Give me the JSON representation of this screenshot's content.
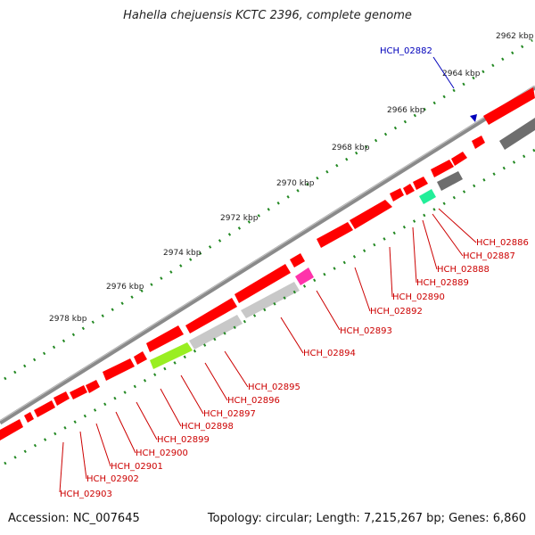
{
  "title": "Hahella chejuensis KCTC 2396, complete genome",
  "accession": "Accession: NC_007645",
  "summary": "Topology: circular; Length: 7,215,267 bp; Genes: 6,860",
  "colors": {
    "backbone": "#8a8a8a",
    "gene_red": "#ff0000",
    "gene_grey": "#c8c8c8",
    "gene_dark": "#6e6e6e",
    "gene_green": "#99ee22",
    "gene_teal": "#22ee99",
    "gene_magenta": "#ff33aa",
    "tick_green": "#228822",
    "label_red": "#cc0000",
    "label_blue": "#0000bb"
  },
  "ruler_labels": [
    "2962 kbp",
    "2964 kbp",
    "2966 kbp",
    "2968 kbp",
    "2970 kbp",
    "2972 kbp",
    "2974 kbp",
    "2976 kbp",
    "2978 kbp"
  ],
  "highlight_gene": "HCH_02882",
  "gene_labels": [
    "HCH_02886",
    "HCH_02887",
    "HCH_02888",
    "HCH_02889",
    "HCH_02890",
    "HCH_02892",
    "HCH_02893",
    "HCH_02894",
    "HCH_02895",
    "HCH_02896",
    "HCH_02897",
    "HCH_02898",
    "HCH_02899",
    "HCH_02900",
    "HCH_02901",
    "HCH_02902",
    "HCH_02903"
  ]
}
